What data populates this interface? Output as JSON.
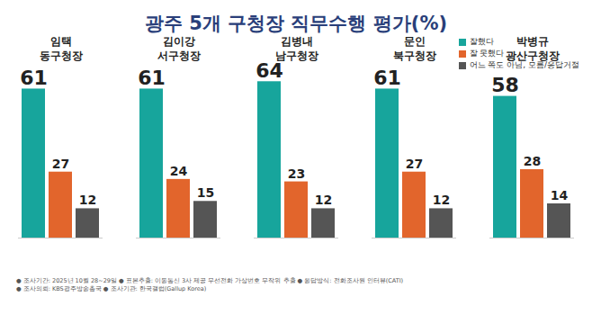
{
  "chart_data": {
    "type": "bar",
    "title": "광주 5개 구청장 직무수행 평가(%)",
    "categories": [
      "임택",
      "김이강",
      "김병내",
      "문인",
      "박병규"
    ],
    "category_titles": [
      "동구청장",
      "서구청장",
      "남구청장",
      "북구청장",
      "광산구청장"
    ],
    "series": [
      {
        "name": "잘했다",
        "color": "#17a59c",
        "values": [
          61,
          61,
          64,
          61,
          58
        ]
      },
      {
        "name": "잘 못했다",
        "color": "#e2652c",
        "values": [
          27,
          24,
          23,
          27,
          28
        ]
      },
      {
        "name": "어느 쪽도 아님, 모름/응답거절",
        "color": "#555555",
        "values": [
          12,
          15,
          12,
          12,
          14
        ]
      }
    ],
    "ylim": [
      0,
      70
    ],
    "tick_labels": false,
    "grid": false,
    "legend": "top-right",
    "data_labels": true,
    "notes": [
      "● 조사기간: 2025년 10월 28~29일 ● 표본추출: 이동통신 3사 제공 무선전화 가상번호 무작위 추출 ● 응답방식: 전화조사원 인터뷰(CATI)",
      "● 조사의뢰: KBS광주방송총국 ● 조사기관: 한국갤럽(Gallup Korea)"
    ]
  }
}
